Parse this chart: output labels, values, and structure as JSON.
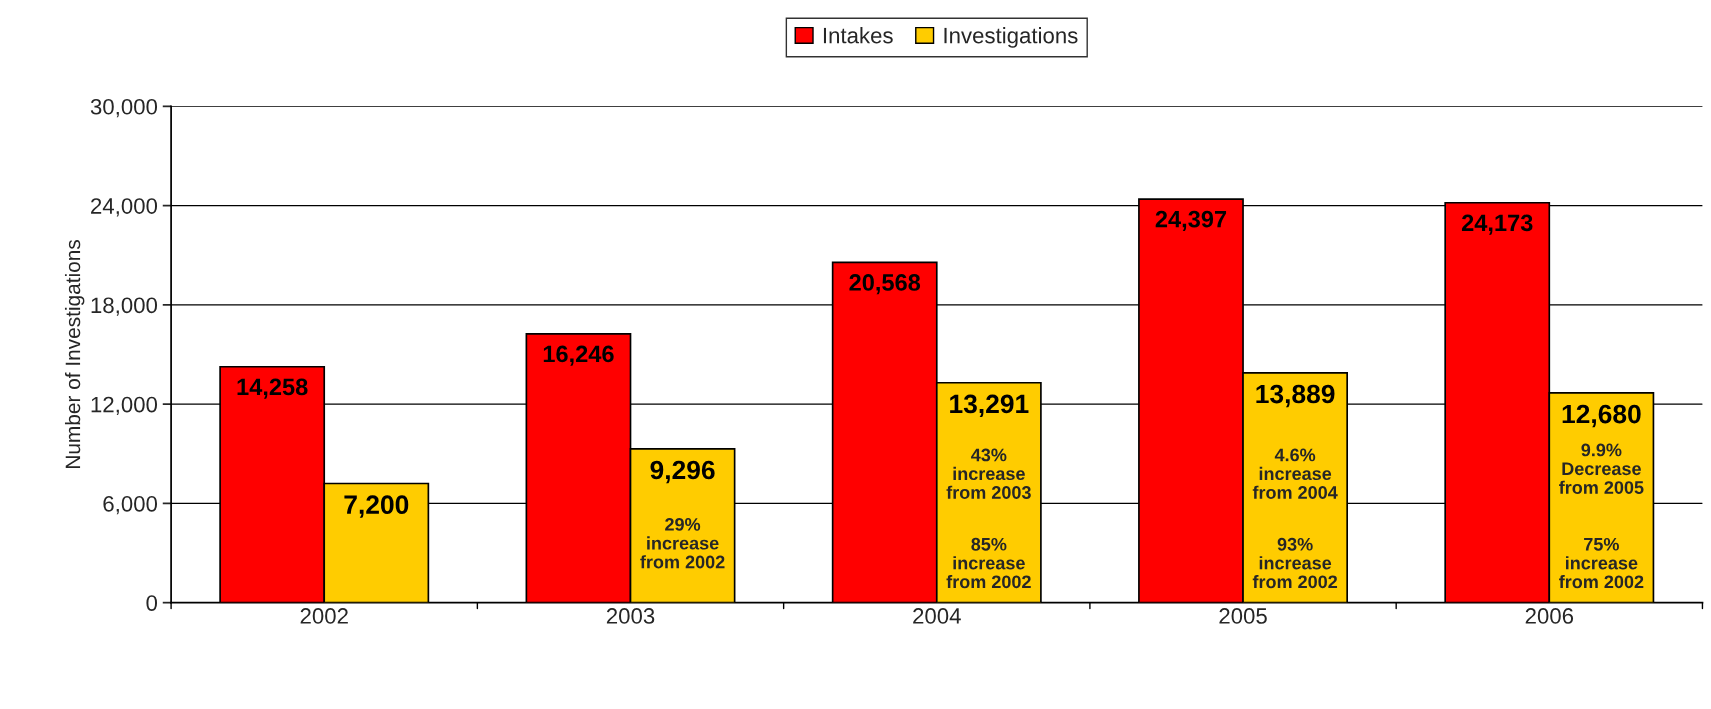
{
  "chart_data": {
    "type": "bar",
    "ylabel": "Number of Investigations",
    "categories": [
      "2002",
      "2003",
      "2004",
      "2005",
      "2006"
    ],
    "series": [
      {
        "name": "Intakes",
        "color": "#ff0000",
        "values": [
          14258,
          16246,
          20568,
          24397,
          24173
        ]
      },
      {
        "name": "Investigations",
        "color": "#ffcc00",
        "values": [
          7200,
          9296,
          13291,
          13889,
          12680
        ]
      }
    ],
    "ylim": [
      0,
      30000
    ],
    "yticks": [
      {
        "value": 0,
        "label": "0"
      },
      {
        "value": 6000,
        "label": "6,000"
      },
      {
        "value": 12000,
        "label": "12,000"
      },
      {
        "value": 18000,
        "label": "18,000"
      },
      {
        "value": 24000,
        "label": "24,000"
      },
      {
        "value": 30000,
        "label": "30,000"
      }
    ],
    "value_labels": [
      [
        "14,258",
        "16,246",
        "20,568",
        "24,397",
        "24,173"
      ],
      [
        "7,200",
        "9,296",
        "13,291",
        "13,889",
        "12,680"
      ]
    ],
    "annotations": [
      {
        "text": "29%\nincrease\nfrom 2002",
        "x": "2003",
        "y": 3500
      },
      {
        "text": "43%\nincrease\nfrom 2003",
        "x": "2004",
        "y": 7700
      },
      {
        "text": "85%\nincrease\nfrom 2002",
        "x": "2004",
        "y": 2300
      },
      {
        "text": "4.6%\nincrease\nfrom 2004",
        "x": "2005",
        "y": 7700
      },
      {
        "text": "93%\nincrease\nfrom 2002",
        "x": "2005",
        "y": 2300
      },
      {
        "text": "9.9%\nDecrease\nfrom 2005",
        "x": "2006",
        "y": 8000
      },
      {
        "text": "75%\nincrease\nfrom 2002",
        "x": "2006",
        "y": 2300
      }
    ],
    "grid": "y",
    "legend": "top"
  }
}
